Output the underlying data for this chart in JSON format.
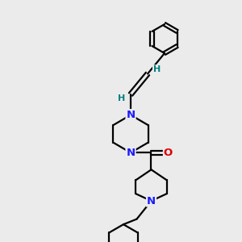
{
  "bg_color": "#ebebeb",
  "bond_color": "#000000",
  "N_color": "#1a1aff",
  "O_color": "#dd0000",
  "H_color": "#008080",
  "line_width": 1.6,
  "font_size_atom": 9.5,
  "font_size_H": 8.0,
  "xlim": [
    0,
    10
  ],
  "ylim": [
    0,
    10
  ]
}
